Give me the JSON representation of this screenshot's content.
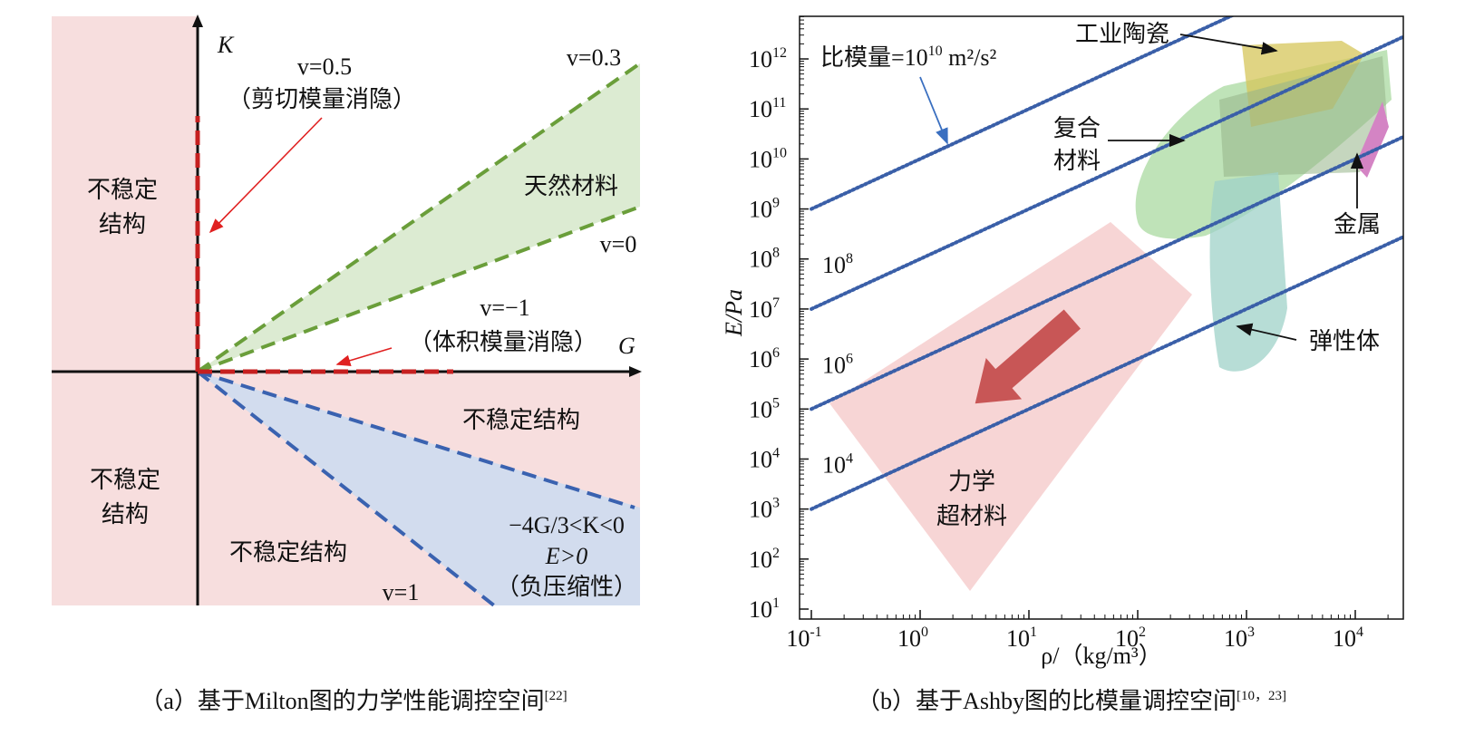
{
  "panel_a": {
    "axis_k": "K",
    "axis_g": "G",
    "nu_05": "v=0.5",
    "shear_vanish": "（剪切模量消隐）",
    "unstable_left_top": [
      "不稳定",
      "结构"
    ],
    "nu_03": "v=0.3",
    "natural": "天然材料",
    "nu_0": "v=0",
    "nu_m1": "v=−1",
    "bulk_vanish": "（体积模量消隐）",
    "unstable_right": "不稳定结构",
    "unstable_left_bottom": [
      "不稳定",
      "结构"
    ],
    "neg_cond": "−4G/3<K<0",
    "e_pos": "E>0",
    "neg_comp": "（负压缩性）",
    "unstable_bottom": "不稳定结构",
    "nu_1": "v=1",
    "caption": {
      "text": "（a）基于Milton图的力学性能调控空间",
      "ref": "[22]"
    }
  },
  "panel_b": {
    "x_axis": {
      "label": "ρ/（kg/m³）",
      "tick_base": "10",
      "tick_exponents": [
        -1,
        0,
        1,
        2,
        3,
        4
      ]
    },
    "y_axis": {
      "label": "E/Pa",
      "tick_base": "10",
      "tick_exponents": [
        1,
        2,
        3,
        4,
        5,
        6,
        7,
        8,
        9,
        10,
        11,
        12
      ]
    },
    "iso_lines": [
      {
        "label_prefix": "比模量=",
        "base": "10",
        "exponent": 10,
        "unit": " m²/s²"
      },
      {
        "base": "10",
        "exponent": 8
      },
      {
        "base": "10",
        "exponent": 6
      },
      {
        "base": "10",
        "exponent": 4
      }
    ],
    "regions": {
      "ceramics": "工业陶瓷",
      "composites": [
        "复合",
        "材料"
      ],
      "metals": "金属",
      "elastomers": "弹性体",
      "metamaterials": [
        "力学",
        "超材料"
      ]
    },
    "caption": {
      "text": "（b）基于Ashby图的比模量调控空间",
      "ref": "[10，23]"
    }
  }
}
